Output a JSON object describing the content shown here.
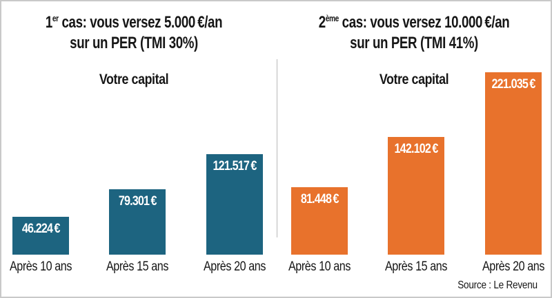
{
  "source_credit": "Source : Le Revenu",
  "colors": {
    "left_bar": "#1d6480",
    "right_bar": "#e8722c",
    "text": "#161616",
    "border": "#c9c9c9",
    "divider": "#b9b9b9",
    "value_text": "#ffffff"
  },
  "chart_data": [
    {
      "type": "bar",
      "title": {
        "case_num": "1",
        "case_sup": "er",
        "rest": " cas: vous versez 5.000 €/an",
        "line2": "sur un PER (TMI 30%)"
      },
      "axis_label": "Votre capital",
      "categories": [
        "Après 10 ans",
        "Après 15 ans",
        "Après 20 ans"
      ],
      "values": [
        46224,
        79301,
        121517
      ],
      "value_labels": [
        "46.224 €",
        "79.301 €",
        "121.517 €"
      ],
      "bar_color": "#1d6480",
      "unit": "€",
      "grid": false,
      "legend": "none",
      "ylim": [
        0,
        230000
      ]
    },
    {
      "type": "bar",
      "title": {
        "case_num": "2",
        "case_sup": "ème",
        "rest": " cas: vous versez 10.000 €/an",
        "line2": "sur un PER (TMI 41%)"
      },
      "axis_label": "Votre capital",
      "categories": [
        "Après 10 ans",
        "Après 15 ans",
        "Après 20 ans"
      ],
      "values": [
        81448,
        142102,
        221035
      ],
      "value_labels": [
        "81.448 €",
        "142.102 €",
        "221.035 €"
      ],
      "bar_color": "#e8722c",
      "unit": "€",
      "grid": false,
      "legend": "none",
      "ylim": [
        0,
        230000
      ]
    }
  ]
}
